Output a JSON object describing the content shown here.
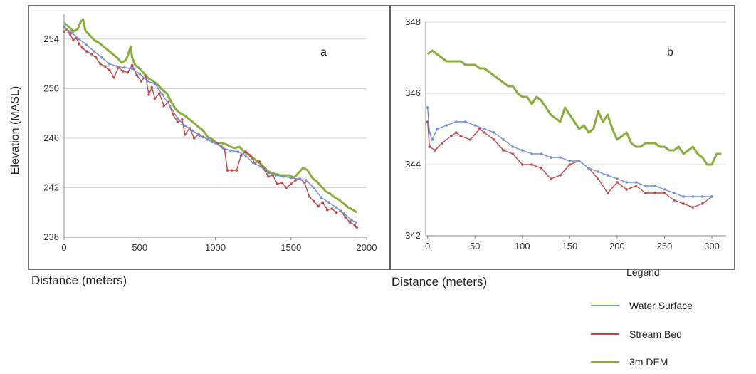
{
  "chart_data": [
    {
      "type": "line",
      "panel_label": "a",
      "xlabel": "Distance (meters)",
      "ylabel": "Elevation (MASL)",
      "xlim": [
        0,
        2000
      ],
      "ylim": [
        238,
        256
      ],
      "xticks": [
        0,
        500,
        1000,
        1500,
        2000
      ],
      "yticks": [
        238,
        242,
        246,
        250,
        254
      ],
      "grid": "horizontal",
      "series": [
        {
          "name": "Water Surface",
          "color": "#6f8fd6",
          "x": [
            0,
            50,
            100,
            150,
            200,
            250,
            300,
            350,
            400,
            450,
            500,
            550,
            600,
            650,
            700,
            750,
            800,
            850,
            900,
            950,
            1000,
            1050,
            1100,
            1150,
            1200,
            1250,
            1300,
            1350,
            1400,
            1450,
            1500,
            1550,
            1600,
            1650,
            1700,
            1750,
            1800,
            1850,
            1900,
            1930
          ],
          "y": [
            255.0,
            254.5,
            254.0,
            253.5,
            253.0,
            252.5,
            252.0,
            251.8,
            251.7,
            251.6,
            251.2,
            250.6,
            250.4,
            249.5,
            248.6,
            247.6,
            247.0,
            246.6,
            246.2,
            245.9,
            245.6,
            245.2,
            245.0,
            244.9,
            244.6,
            244.0,
            243.7,
            243.2,
            243.0,
            242.9,
            242.8,
            242.7,
            242.6,
            242.0,
            241.2,
            240.8,
            240.4,
            239.9,
            239.4,
            239.2
          ]
        },
        {
          "name": "Stream Bed",
          "color": "#c24848",
          "x": [
            0,
            20,
            40,
            60,
            80,
            100,
            120,
            150,
            180,
            210,
            240,
            270,
            300,
            330,
            360,
            390,
            420,
            450,
            480,
            510,
            540,
            560,
            580,
            600,
            630,
            660,
            690,
            720,
            750,
            780,
            800,
            830,
            860,
            890,
            920,
            950,
            980,
            1010,
            1040,
            1060,
            1080,
            1110,
            1140,
            1170,
            1200,
            1230,
            1260,
            1290,
            1320,
            1350,
            1380,
            1410,
            1440,
            1470,
            1500,
            1530,
            1560,
            1590,
            1620,
            1650,
            1680,
            1710,
            1740,
            1770,
            1800,
            1830,
            1860,
            1890,
            1920,
            1935
          ],
          "y": [
            254.6,
            254.8,
            254.4,
            253.9,
            254.1,
            253.6,
            253.3,
            253.0,
            252.8,
            252.5,
            252.0,
            251.8,
            251.5,
            250.9,
            251.7,
            251.4,
            251.3,
            251.9,
            251.1,
            250.6,
            251.0,
            249.5,
            250.1,
            249.2,
            249.6,
            248.6,
            248.9,
            247.9,
            247.3,
            247.5,
            246.3,
            246.8,
            246.0,
            246.3,
            246.1,
            245.9,
            245.7,
            245.6,
            245.3,
            245.1,
            243.4,
            243.4,
            243.4,
            244.6,
            244.9,
            244.6,
            244.0,
            244.1,
            243.5,
            242.9,
            243.0,
            242.3,
            242.4,
            242.0,
            242.3,
            242.6,
            242.7,
            242.4,
            241.3,
            240.9,
            240.5,
            240.8,
            240.2,
            240.3,
            240.0,
            240.1,
            239.6,
            239.2,
            239.0,
            238.8
          ]
        },
        {
          "name": "3m DEM",
          "color": "#88ad3c",
          "x": [
            0,
            30,
            60,
            90,
            110,
            125,
            140,
            170,
            200,
            230,
            260,
            290,
            320,
            350,
            380,
            410,
            430,
            440,
            450,
            470,
            500,
            530,
            560,
            590,
            620,
            650,
            680,
            710,
            740,
            770,
            800,
            830,
            860,
            890,
            920,
            950,
            980,
            1010,
            1040,
            1070,
            1100,
            1130,
            1160,
            1190,
            1220,
            1250,
            1280,
            1310,
            1340,
            1370,
            1400,
            1430,
            1460,
            1490,
            1520,
            1550,
            1580,
            1610,
            1640,
            1670,
            1700,
            1730,
            1760,
            1790,
            1820,
            1850,
            1880,
            1910,
            1935
          ],
          "y": [
            255.3,
            255.0,
            254.6,
            254.8,
            255.4,
            255.6,
            254.7,
            254.3,
            253.9,
            253.7,
            253.4,
            253.1,
            252.8,
            252.5,
            252.1,
            252.3,
            253.0,
            253.4,
            252.5,
            251.9,
            251.6,
            251.2,
            250.8,
            250.6,
            250.3,
            249.9,
            249.6,
            248.9,
            248.3,
            248.0,
            247.8,
            247.5,
            247.2,
            246.9,
            246.6,
            246.1,
            245.9,
            245.6,
            245.6,
            245.5,
            245.3,
            245.2,
            245.3,
            244.9,
            244.7,
            244.4,
            244.1,
            243.8,
            243.4,
            243.2,
            243.1,
            243.0,
            243.0,
            243.0,
            242.8,
            243.2,
            243.6,
            243.4,
            242.8,
            242.5,
            242.1,
            241.7,
            241.5,
            241.2,
            241.0,
            240.7,
            240.4,
            240.2,
            240.0
          ]
        }
      ]
    },
    {
      "type": "line",
      "panel_label": "b",
      "xlabel": "Distance (meters)",
      "ylabel": "",
      "xlim": [
        -2,
        315
      ],
      "ylim": [
        342,
        348
      ],
      "xticks": [
        0,
        50,
        100,
        150,
        200,
        250,
        300
      ],
      "yticks": [
        342,
        344,
        346,
        348
      ],
      "grid": "horizontal",
      "series": [
        {
          "name": "Water Surface",
          "color": "#6f8fd6",
          "x": [
            0,
            2,
            5,
            10,
            20,
            30,
            40,
            50,
            60,
            70,
            80,
            90,
            100,
            110,
            120,
            130,
            140,
            150,
            160,
            170,
            180,
            190,
            200,
            210,
            220,
            230,
            240,
            250,
            260,
            270,
            280,
            290,
            300
          ],
          "y": [
            345.6,
            344.9,
            344.7,
            345.0,
            345.1,
            345.2,
            345.2,
            345.1,
            345.0,
            344.9,
            344.7,
            344.5,
            344.4,
            344.3,
            344.3,
            344.2,
            344.2,
            344.1,
            344.1,
            343.9,
            343.8,
            343.7,
            343.6,
            343.5,
            343.5,
            343.4,
            343.4,
            343.3,
            343.2,
            343.1,
            343.1,
            343.1,
            343.1
          ]
        },
        {
          "name": "Stream Bed",
          "color": "#c24848",
          "x": [
            0,
            2,
            8,
            15,
            25,
            30,
            35,
            45,
            55,
            60,
            70,
            80,
            90,
            100,
            110,
            120,
            130,
            140,
            150,
            160,
            170,
            180,
            190,
            200,
            210,
            220,
            230,
            240,
            250,
            260,
            270,
            280,
            290,
            300
          ],
          "y": [
            345.2,
            344.5,
            344.4,
            344.6,
            344.8,
            344.9,
            344.8,
            344.7,
            345.0,
            344.9,
            344.7,
            344.4,
            344.3,
            344.0,
            344.0,
            343.9,
            343.6,
            343.7,
            344.0,
            344.1,
            343.9,
            343.6,
            343.2,
            343.5,
            343.3,
            343.4,
            343.2,
            343.2,
            343.2,
            343.0,
            342.9,
            342.8,
            342.9,
            343.1
          ]
        },
        {
          "name": "3m DEM",
          "color": "#88ad3c",
          "x": [
            0,
            5,
            10,
            15,
            20,
            25,
            30,
            35,
            40,
            45,
            50,
            55,
            60,
            65,
            70,
            75,
            80,
            85,
            90,
            95,
            100,
            105,
            110,
            115,
            120,
            125,
            130,
            135,
            140,
            145,
            150,
            155,
            160,
            165,
            170,
            175,
            180,
            185,
            190,
            195,
            200,
            205,
            210,
            215,
            220,
            225,
            230,
            235,
            240,
            245,
            250,
            255,
            260,
            265,
            270,
            275,
            280,
            285,
            290,
            295,
            300,
            305,
            310
          ],
          "y": [
            347.1,
            347.2,
            347.1,
            347.0,
            346.9,
            346.9,
            346.9,
            346.9,
            346.8,
            346.8,
            346.8,
            346.7,
            346.7,
            346.6,
            346.5,
            346.4,
            346.3,
            346.2,
            346.2,
            346.0,
            345.9,
            345.9,
            345.7,
            345.9,
            345.8,
            345.6,
            345.4,
            345.3,
            345.2,
            345.6,
            345.4,
            345.2,
            345.0,
            345.1,
            344.9,
            345.0,
            345.5,
            345.2,
            345.4,
            345.0,
            344.7,
            344.8,
            344.9,
            344.6,
            344.5,
            344.5,
            344.6,
            344.6,
            344.6,
            344.5,
            344.5,
            344.4,
            344.4,
            344.5,
            344.3,
            344.4,
            344.5,
            344.3,
            344.2,
            344.0,
            344.0,
            344.3,
            344.3
          ]
        }
      ]
    }
  ],
  "legend": {
    "title": "Legend",
    "placement": "bottom-right",
    "items": [
      {
        "label": "Water Surface",
        "color": "#6f8fd6"
      },
      {
        "label": "Stream Bed",
        "color": "#c24848"
      },
      {
        "label": "3m DEM",
        "color": "#88ad3c"
      }
    ]
  }
}
